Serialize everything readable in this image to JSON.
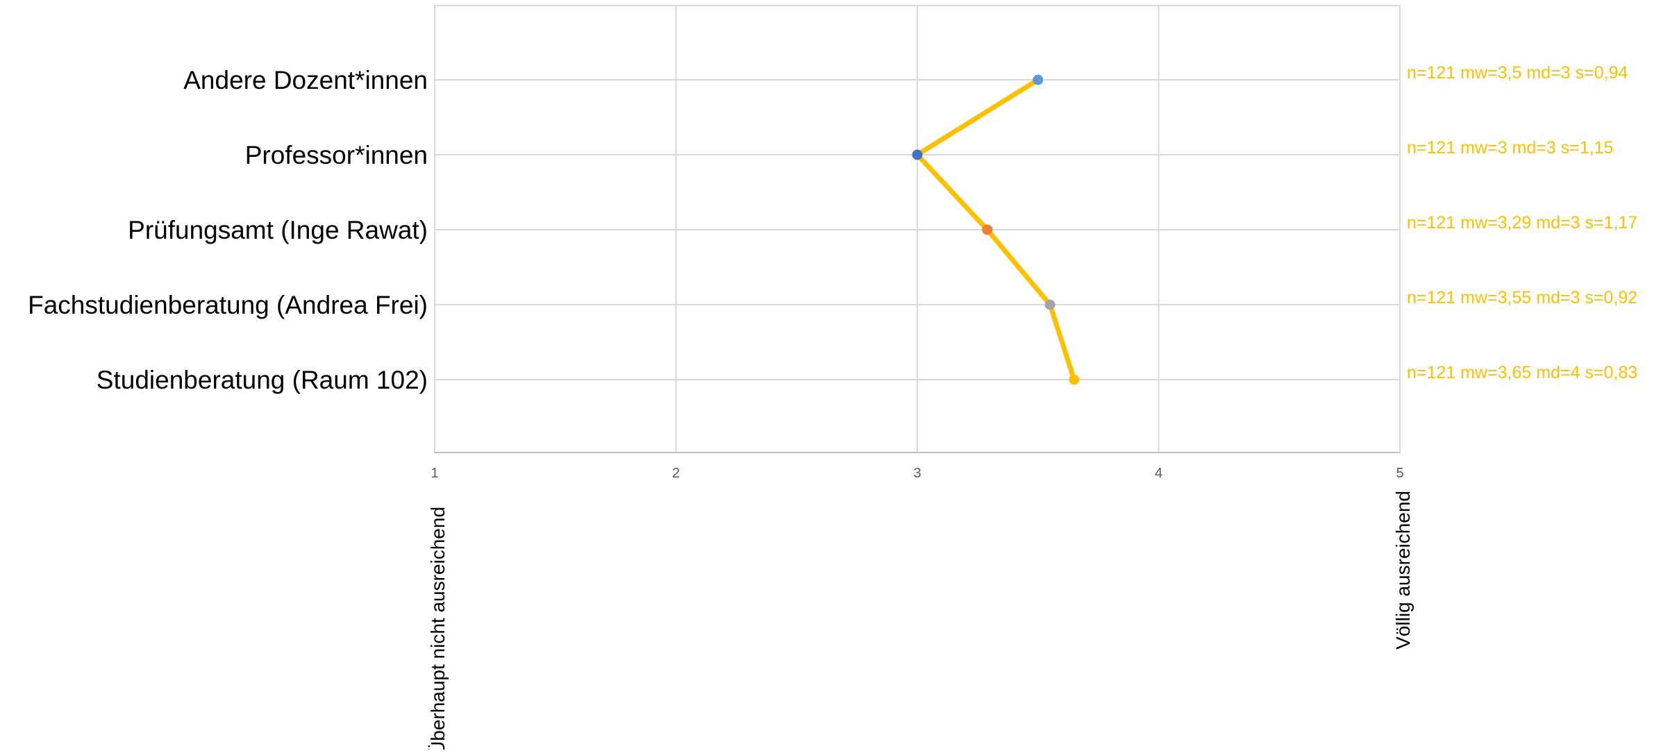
{
  "chart_data": {
    "type": "line",
    "orientation": "horizontal",
    "x_range": [
      1,
      5
    ],
    "x_ticks": [
      "1",
      "2",
      "3",
      "4",
      "5"
    ],
    "x_min_label": "Überhaupt nicht ausreichend",
    "x_max_label": "Völlig ausreichend",
    "grid": true,
    "legend": "none",
    "line_color": "#FFC000",
    "stats_color": "#FFC000",
    "categories": [
      "Andere Dozent*innen",
      "Professor*innen",
      "Prüfungsamt (Inge Rawat)",
      "Fachstudienberatung (Andrea Frei)",
      "Studienberatung (Raum 102)"
    ],
    "values": [
      3.5,
      3,
      3.29,
      3.55,
      3.65
    ],
    "point_colors": [
      "#5B9BD5",
      "#4472C4",
      "#ED7D31",
      "#A5A5A5",
      "#FFC000"
    ],
    "stats": [
      "n=121 mw=3,5 md=3 s=0,94",
      "n=121 mw=3 md=3 s=1,15",
      "n=121 mw=3,29 md=3 s=1,17",
      "n=121 mw=3,55 md=3 s=0,92",
      "n=121 mw=3,65 md=4 s=0,83"
    ]
  }
}
